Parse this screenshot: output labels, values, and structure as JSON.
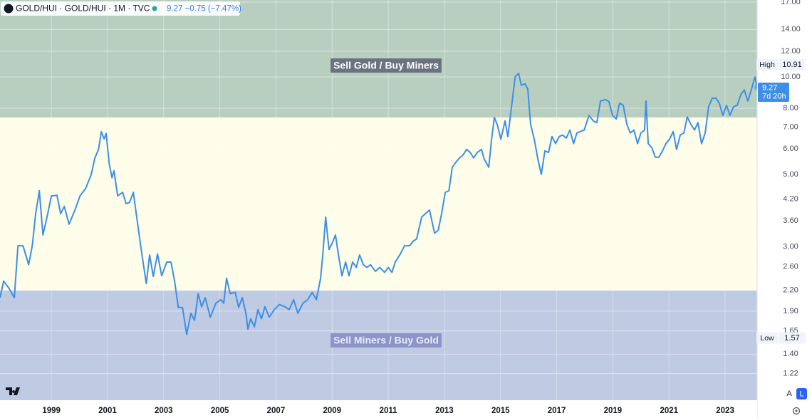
{
  "header": {
    "symbol": "GOLD/HUI · GOLD/HUI · 1M · TVC",
    "change": "−0.75",
    "change_pct": "(−7.47%)"
  },
  "chart_data": {
    "type": "line",
    "log_scale": true,
    "grid": true,
    "xlim": [
      1997.17,
      2024.14
    ],
    "xticks": [
      1999,
      2001,
      2003,
      2005,
      2007,
      2009,
      2011,
      2013,
      2015,
      2017,
      2019,
      2021,
      2023
    ],
    "ylim": [
      1.01,
      17.25
    ],
    "yticks": [
      {
        "value": 1.22,
        "label": "1.22"
      },
      {
        "value": 1.4,
        "label": "1.40"
      },
      {
        "value": 1.65,
        "label": "1.65"
      },
      {
        "value": 1.9,
        "label": "1.90"
      },
      {
        "value": 2.2,
        "label": "2.20"
      },
      {
        "value": 2.6,
        "label": "2.60"
      },
      {
        "value": 3,
        "label": "3.00"
      },
      {
        "value": 3.6,
        "label": "3.60"
      },
      {
        "value": 4.2,
        "label": "4.20"
      },
      {
        "value": 5,
        "label": "5.00"
      },
      {
        "value": 6,
        "label": "6.00"
      },
      {
        "value": 7,
        "label": "7.00"
      },
      {
        "value": 8,
        "label": "8.00"
      },
      {
        "value": 10,
        "label": "10.00"
      },
      {
        "value": 12,
        "label": "12.00"
      },
      {
        "value": 14,
        "label": "14.00"
      },
      {
        "value": 17,
        "label": "17.00"
      }
    ],
    "zones": [
      {
        "label": "Sell Gold / Buy Miners",
        "from": 7.5,
        "to": 17.25,
        "color": "#b8cfc0"
      },
      {
        "label": "Sell Miners / Buy Gold",
        "from": 1.01,
        "to": 2.2,
        "color": "#bfcae3"
      }
    ],
    "high": {
      "label": "High",
      "value": 10.91
    },
    "low": {
      "label": "Low",
      "value": 1.57
    },
    "last": {
      "value": 9.27,
      "countdown": "7d 20h"
    },
    "x": [
      1997.17,
      1997.3,
      1997.48,
      1997.68,
      1997.81,
      1997.99,
      1998.19,
      1998.32,
      1998.44,
      1998.57,
      1998.7,
      1998.87,
      1999.0,
      1999.2,
      1999.33,
      1999.46,
      1999.63,
      1999.84,
      2000.02,
      2000.22,
      2000.42,
      2000.55,
      2000.68,
      2000.78,
      2000.88,
      2000.95,
      2001.06,
      2001.16,
      2001.23,
      2001.36,
      2001.54,
      2001.66,
      2001.79,
      2001.92,
      2002.04,
      2002.2,
      2002.38,
      2002.5,
      2002.63,
      2002.78,
      2002.93,
      2003.11,
      2003.26,
      2003.39,
      2003.52,
      2003.67,
      2003.82,
      2003.97,
      2004.1,
      2004.23,
      2004.35,
      2004.48,
      2004.66,
      2004.86,
      2005.04,
      2005.14,
      2005.24,
      2005.37,
      2005.55,
      2005.67,
      2005.8,
      2005.93,
      2006.0,
      2006.1,
      2006.23,
      2006.36,
      2006.48,
      2006.61,
      2006.76,
      2006.94,
      2007.12,
      2007.32,
      2007.47,
      2007.63,
      2007.78,
      2007.96,
      2008.13,
      2008.29,
      2008.44,
      2008.59,
      2008.67,
      2008.77,
      2008.89,
      2009.02,
      2009.12,
      2009.22,
      2009.35,
      2009.48,
      2009.6,
      2009.73,
      2009.86,
      2009.98,
      2010.11,
      2010.24,
      2010.37,
      2010.54,
      2010.7,
      2010.87,
      2011.0,
      2011.13,
      2011.25,
      2011.43,
      2011.58,
      2011.76,
      2011.89,
      2012.01,
      2012.19,
      2012.32,
      2012.47,
      2012.65,
      2012.78,
      2012.9,
      2013.03,
      2013.16,
      2013.28,
      2013.41,
      2013.54,
      2013.66,
      2013.79,
      2013.92,
      2014.04,
      2014.17,
      2014.32,
      2014.42,
      2014.58,
      2014.68,
      2014.78,
      2014.88,
      2015.01,
      2015.16,
      2015.26,
      2015.39,
      2015.52,
      2015.64,
      2015.74,
      2015.87,
      2015.97,
      2016.07,
      2016.2,
      2016.33,
      2016.45,
      2016.58,
      2016.71,
      2016.83,
      2016.96,
      2017.09,
      2017.21,
      2017.34,
      2017.47,
      2017.6,
      2017.72,
      2017.85,
      2017.98,
      2018.15,
      2018.31,
      2018.43,
      2018.56,
      2018.74,
      2018.86,
      2018.99,
      2019.12,
      2019.24,
      2019.37,
      2019.5,
      2019.62,
      2019.75,
      2019.88,
      2020.0,
      2020.13,
      2020.18,
      2020.26,
      2020.39,
      2020.51,
      2020.64,
      2020.77,
      2020.89,
      2021.02,
      2021.15,
      2021.27,
      2021.4,
      2021.53,
      2021.65,
      2021.78,
      2021.91,
      2022.03,
      2022.16,
      2022.29,
      2022.41,
      2022.54,
      2022.67,
      2022.79,
      2022.92,
      2023.05,
      2023.17,
      2023.3,
      2023.43,
      2023.56,
      2023.68,
      2023.81,
      2023.94,
      2024.06,
      2024.14
    ],
    "series": [
      {
        "name": "GOLD/HUI",
        "color": "#3d8fe6",
        "values": [
          2.09,
          2.35,
          2.24,
          2.09,
          3.02,
          3.02,
          2.64,
          3.02,
          3.79,
          4.46,
          3.26,
          3.79,
          4.3,
          4.32,
          3.79,
          3.99,
          3.52,
          3.89,
          4.3,
          4.53,
          5.01,
          5.63,
          5.98,
          6.78,
          6.44,
          6.7,
          5.41,
          4.89,
          5.14,
          4.3,
          4.41,
          4.07,
          4.11,
          4.41,
          3.7,
          2.94,
          2.31,
          2.83,
          2.43,
          2.85,
          2.44,
          2.69,
          2.69,
          2.35,
          1.95,
          1.95,
          1.61,
          1.87,
          1.78,
          2.15,
          1.96,
          2.09,
          1.82,
          2.01,
          2.06,
          2.01,
          2.4,
          2.15,
          2.17,
          1.95,
          2.09,
          1.87,
          1.67,
          1.8,
          1.7,
          1.92,
          1.8,
          1.96,
          1.82,
          1.92,
          1.99,
          1.96,
          1.92,
          2.06,
          1.87,
          2.01,
          2.06,
          2.17,
          2.06,
          2.4,
          2.85,
          3.7,
          2.94,
          3.1,
          3.26,
          2.85,
          2.44,
          2.69,
          2.44,
          2.69,
          2.59,
          2.83,
          2.64,
          2.59,
          2.64,
          2.52,
          2.59,
          2.5,
          2.59,
          2.5,
          2.69,
          2.85,
          3.02,
          3.02,
          3.12,
          3.17,
          3.7,
          3.79,
          3.89,
          3.3,
          3.37,
          3.79,
          4.41,
          4.46,
          5.27,
          5.46,
          5.63,
          5.74,
          5.98,
          5.85,
          5.63,
          5.85,
          5.98,
          5.58,
          5.27,
          6.43,
          7.5,
          7.14,
          6.43,
          7.32,
          6.55,
          8.09,
          10.0,
          10.25,
          9.43,
          9.52,
          9.17,
          7.14,
          6.43,
          5.58,
          5.01,
          5.92,
          5.85,
          6.55,
          6.23,
          6.55,
          6.62,
          6.48,
          6.86,
          6.23,
          6.72,
          6.79,
          6.86,
          7.61,
          7.31,
          7.23,
          8.43,
          8.51,
          8.39,
          7.61,
          7.42,
          8.3,
          8.18,
          7.14,
          6.72,
          6.86,
          6.23,
          6.72,
          6.86,
          8.43,
          6.23,
          6.05,
          5.66,
          5.66,
          5.92,
          6.23,
          6.43,
          6.79,
          5.98,
          6.62,
          6.72,
          7.53,
          7.14,
          6.86,
          7.23,
          6.23,
          6.72,
          8.09,
          8.6,
          8.6,
          8.3,
          7.61,
          8.18,
          7.61,
          8.09,
          8.18,
          8.82,
          9.12,
          8.43,
          9.17,
          10.0,
          9.27
        ]
      }
    ]
  }
}
